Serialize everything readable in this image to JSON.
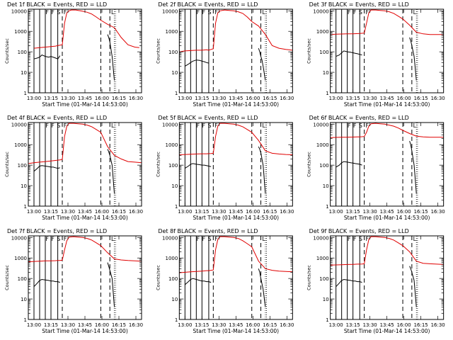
{
  "colors": {
    "events": "#000000",
    "lld": "#e00000",
    "axes": "#000000",
    "background": "#ffffff"
  },
  "chart_data": {
    "type": "line",
    "ylabel": "Counts/sec",
    "xlabel": "Start Time (01-Mar-14 14:53:00)",
    "yscale": "log",
    "ylim": [
      1,
      12000
    ],
    "xlim_minutes_from_12_55": [
      0,
      100
    ],
    "ytick_labels": [
      "1",
      "10",
      "100",
      "1000",
      "10000"
    ],
    "xtick_labels": [
      "13:00",
      "13:15",
      "13:30",
      "13:45",
      "16:00",
      "16:15",
      "16:30"
    ],
    "legend": {
      "black": "Events",
      "red": "LLD"
    },
    "state_marks": [
      "F",
      "F",
      "S",
      "F",
      "L"
    ],
    "panels": [
      {
        "title": "Det 1f BLACK = Events, RED = LLD",
        "series": [
          {
            "name": "LLD",
            "color": "red",
            "x": [
              5,
              10,
              15,
              20,
              24,
              26,
              28,
              30,
              32,
              34,
              36,
              38,
              40,
              42,
              44,
              46,
              48,
              52,
              56,
              60,
              64,
              70,
              76,
              82,
              88,
              94,
              98
            ],
            "y": [
              150,
              160,
              170,
              180,
              190,
              200,
              210,
              220,
              2500,
              8000,
              10000,
              11000,
              11000,
              11000,
              10500,
              10000,
              9500,
              8500,
              7000,
              5000,
              3500,
              2200,
              1500,
              500,
              220,
              170,
              160
            ]
          },
          {
            "name": "Events",
            "color": "black",
            "x": [
              5,
              8,
              10,
              12,
              15,
              18,
              20,
              24,
              26,
              28
            ],
            "y": [
              45,
              50,
              55,
              70,
              60,
              55,
              60,
              50,
              45,
              65
            ]
          },
          {
            "name": "Events",
            "color": "black",
            "x": [
              70,
              71,
              72,
              74,
              76
            ],
            "y": [
              700,
              500,
              300,
              60,
              4
            ]
          }
        ]
      },
      {
        "title": "Det 2f BLACK = Events, RED = LLD",
        "series": [
          {
            "name": "LLD",
            "color": "red",
            "x": [
              0,
              5,
              10,
              15,
              20,
              24,
              26,
              28,
              30,
              32,
              34,
              36,
              40,
              44,
              48,
              52,
              56,
              60,
              64,
              70,
              76,
              82,
              88,
              94,
              100
            ],
            "y": [
              100,
              110,
              115,
              120,
              120,
              125,
              120,
              130,
              140,
              2500,
              8000,
              10000,
              11000,
              10500,
              10000,
              9000,
              7500,
              5000,
              3000,
              1800,
              700,
              200,
              150,
              130,
              120
            ]
          },
          {
            "name": "Events",
            "color": "black",
            "x": [
              5,
              8,
              10,
              12,
              15,
              18,
              20,
              22,
              24,
              26
            ],
            "y": [
              20,
              25,
              30,
              35,
              40,
              38,
              35,
              33,
              30,
              28
            ]
          },
          {
            "name": "Events",
            "color": "black",
            "x": [
              70,
              71,
              72,
              73,
              74,
              76
            ],
            "y": [
              150,
              100,
              60,
              40,
              20,
              4
            ]
          }
        ]
      },
      {
        "title": "Det 3f BLACK = Events, RED = LLD",
        "series": [
          {
            "name": "LLD",
            "color": "red",
            "x": [
              0,
              5,
              10,
              15,
              20,
              26,
              28,
              30,
              32,
              34,
              36,
              40,
              44,
              48,
              52,
              56,
              60,
              64,
              70,
              76,
              82,
              88,
              94,
              100
            ],
            "y": [
              700,
              720,
              740,
              750,
              760,
              780,
              800,
              820,
              2500,
              8000,
              11000,
              11000,
              10500,
              10000,
              9000,
              7500,
              5500,
              4000,
              2000,
              900,
              750,
              700,
              700,
              700
            ]
          },
          {
            "name": "Events",
            "color": "black",
            "x": [
              5,
              8,
              10,
              12,
              15,
              18,
              20,
              22,
              24,
              26,
              28
            ],
            "y": [
              60,
              70,
              90,
              110,
              100,
              95,
              90,
              85,
              80,
              75,
              70
            ]
          },
          {
            "name": "Events",
            "color": "black",
            "x": [
              70,
              71,
              72,
              74,
              76
            ],
            "y": [
              500,
              350,
              200,
              60,
              4
            ]
          }
        ]
      },
      {
        "title": "Det 4f BLACK = Events, RED = LLD",
        "series": [
          {
            "name": "LLD",
            "color": "red",
            "x": [
              0,
              5,
              10,
              15,
              20,
              24,
              26,
              28,
              30,
              32,
              34,
              36,
              40,
              44,
              48,
              52,
              56,
              60,
              64,
              70,
              76,
              82,
              88,
              94,
              100
            ],
            "y": [
              120,
              130,
              140,
              150,
              160,
              170,
              175,
              180,
              190,
              2500,
              8000,
              11000,
              11000,
              10500,
              10000,
              9000,
              7500,
              5500,
              4000,
              800,
              300,
              200,
              150,
              140,
              130
            ]
          },
          {
            "name": "Events",
            "color": "black",
            "x": [
              5,
              8,
              10,
              12,
              15,
              18,
              20,
              22,
              24,
              26,
              28
            ],
            "y": [
              50,
              70,
              90,
              95,
              90,
              85,
              80,
              80,
              75,
              70,
              75
            ]
          },
          {
            "name": "Events",
            "color": "black",
            "x": [
              70,
              71,
              72,
              74,
              76
            ],
            "y": [
              600,
              450,
              300,
              100,
              4
            ]
          }
        ]
      },
      {
        "title": "Det 5f BLACK = Events, RED = LLD",
        "series": [
          {
            "name": "LLD",
            "color": "red",
            "x": [
              0,
              5,
              10,
              15,
              20,
              24,
              26,
              28,
              30,
              32,
              34,
              36,
              40,
              44,
              48,
              52,
              56,
              60,
              64,
              70,
              76,
              82,
              88,
              94,
              100
            ],
            "y": [
              320,
              330,
              340,
              350,
              360,
              360,
              365,
              370,
              380,
              2500,
              8000,
              11000,
              11000,
              10500,
              10000,
              9000,
              7500,
              5500,
              4000,
              1600,
              500,
              380,
              350,
              330,
              320
            ]
          },
          {
            "name": "Events",
            "color": "black",
            "x": [
              5,
              8,
              10,
              12,
              15,
              18,
              20,
              22,
              24,
              26,
              28
            ],
            "y": [
              70,
              90,
              110,
              120,
              110,
              105,
              100,
              100,
              95,
              90,
              85
            ]
          },
          {
            "name": "Events",
            "color": "black",
            "x": [
              70,
              71,
              72,
              74,
              76
            ],
            "y": [
              800,
              600,
              400,
              100,
              4
            ]
          }
        ]
      },
      {
        "title": "Det 6f BLACK = Events, RED = LLD",
        "series": [
          {
            "name": "LLD",
            "color": "red",
            "x": [
              0,
              5,
              10,
              15,
              20,
              24,
              26,
              28,
              30,
              32,
              34,
              36,
              40,
              44,
              48,
              52,
              56,
              60,
              64,
              70,
              76,
              82,
              88,
              94,
              100
            ],
            "y": [
              2200,
              2250,
              2300,
              2300,
              2350,
              2400,
              2400,
              2450,
              2500,
              4000,
              8000,
              10500,
              11000,
              10500,
              10000,
              9000,
              8000,
              6500,
              5000,
              3500,
              2600,
              2400,
              2300,
              2300,
              2300
            ]
          },
          {
            "name": "Events",
            "color": "black",
            "x": [
              5,
              8,
              10,
              12,
              15,
              18,
              20,
              22,
              24,
              26,
              28
            ],
            "y": [
              80,
              100,
              130,
              150,
              140,
              130,
              125,
              120,
              115,
              110,
              100
            ]
          },
          {
            "name": "Events",
            "color": "black",
            "x": [
              70,
              71,
              72,
              74,
              76
            ],
            "y": [
              1500,
              1000,
              500,
              100,
              4
            ]
          }
        ]
      },
      {
        "title": "Det 7f BLACK = Events, RED = LLD",
        "series": [
          {
            "name": "LLD",
            "color": "red",
            "x": [
              0,
              5,
              10,
              15,
              20,
              24,
              26,
              28,
              30,
              32,
              34,
              36,
              40,
              44,
              48,
              52,
              56,
              60,
              64,
              70,
              76,
              82,
              88,
              94,
              100
            ],
            "y": [
              650,
              680,
              700,
              720,
              730,
              740,
              750,
              760,
              780,
              2500,
              7000,
              10500,
              11000,
              10500,
              10000,
              9000,
              7500,
              5500,
              4000,
              1800,
              900,
              800,
              750,
              720,
              700
            ]
          },
          {
            "name": "Events",
            "color": "black",
            "x": [
              5,
              8,
              10,
              12,
              15,
              18,
              20,
              22,
              24,
              26,
              28
            ],
            "y": [
              40,
              60,
              80,
              90,
              85,
              80,
              75,
              75,
              70,
              70,
              65
            ]
          },
          {
            "name": "Events",
            "color": "black",
            "x": [
              70,
              71,
              72,
              74,
              76
            ],
            "y": [
              600,
              400,
              250,
              100,
              4
            ]
          }
        ]
      },
      {
        "title": "Det 8f BLACK = Events, RED = LLD",
        "series": [
          {
            "name": "LLD",
            "color": "red",
            "x": [
              0,
              5,
              10,
              15,
              20,
              24,
              26,
              28,
              30,
              32,
              34,
              36,
              40,
              44,
              48,
              52,
              56,
              60,
              64,
              70,
              76,
              82,
              88,
              94,
              100
            ],
            "y": [
              190,
              200,
              210,
              220,
              230,
              240,
              240,
              250,
              260,
              2500,
              8000,
              11000,
              11000,
              10500,
              10000,
              9000,
              7000,
              5000,
              3500,
              700,
              300,
              250,
              230,
              220,
              210
            ]
          },
          {
            "name": "Events",
            "color": "black",
            "x": [
              5,
              8,
              10,
              12,
              15,
              18,
              20,
              22,
              24,
              26,
              28
            ],
            "y": [
              50,
              70,
              90,
              100,
              90,
              80,
              75,
              75,
              70,
              70,
              65
            ]
          },
          {
            "name": "Events",
            "color": "black",
            "x": [
              70,
              71,
              72,
              74,
              76
            ],
            "y": [
              300,
              200,
              100,
              30,
              4
            ]
          }
        ]
      },
      {
        "title": "Det 9f BLACK = Events, RED = LLD",
        "series": [
          {
            "name": "LLD",
            "color": "red",
            "x": [
              0,
              5,
              10,
              15,
              20,
              24,
              26,
              28,
              30,
              32,
              34,
              36,
              40,
              44,
              48,
              52,
              56,
              60,
              64,
              70,
              76,
              82,
              88,
              94,
              100
            ],
            "y": [
              450,
              460,
              470,
              480,
              490,
              500,
              500,
              510,
              520,
              2500,
              8000,
              11000,
              11000,
              10500,
              10000,
              9000,
              7500,
              5500,
              4000,
              2000,
              700,
              550,
              520,
              500,
              480
            ]
          },
          {
            "name": "Events",
            "color": "black",
            "x": [
              5,
              8,
              10,
              12,
              15,
              18,
              20,
              22,
              24,
              26,
              28
            ],
            "y": [
              40,
              60,
              80,
              90,
              85,
              80,
              75,
              75,
              70,
              70,
              65
            ]
          },
          {
            "name": "Events",
            "color": "black",
            "x": [
              70,
              71,
              72,
              74,
              76
            ],
            "y": [
              400,
              300,
              200,
              80,
              4
            ]
          }
        ]
      }
    ]
  }
}
